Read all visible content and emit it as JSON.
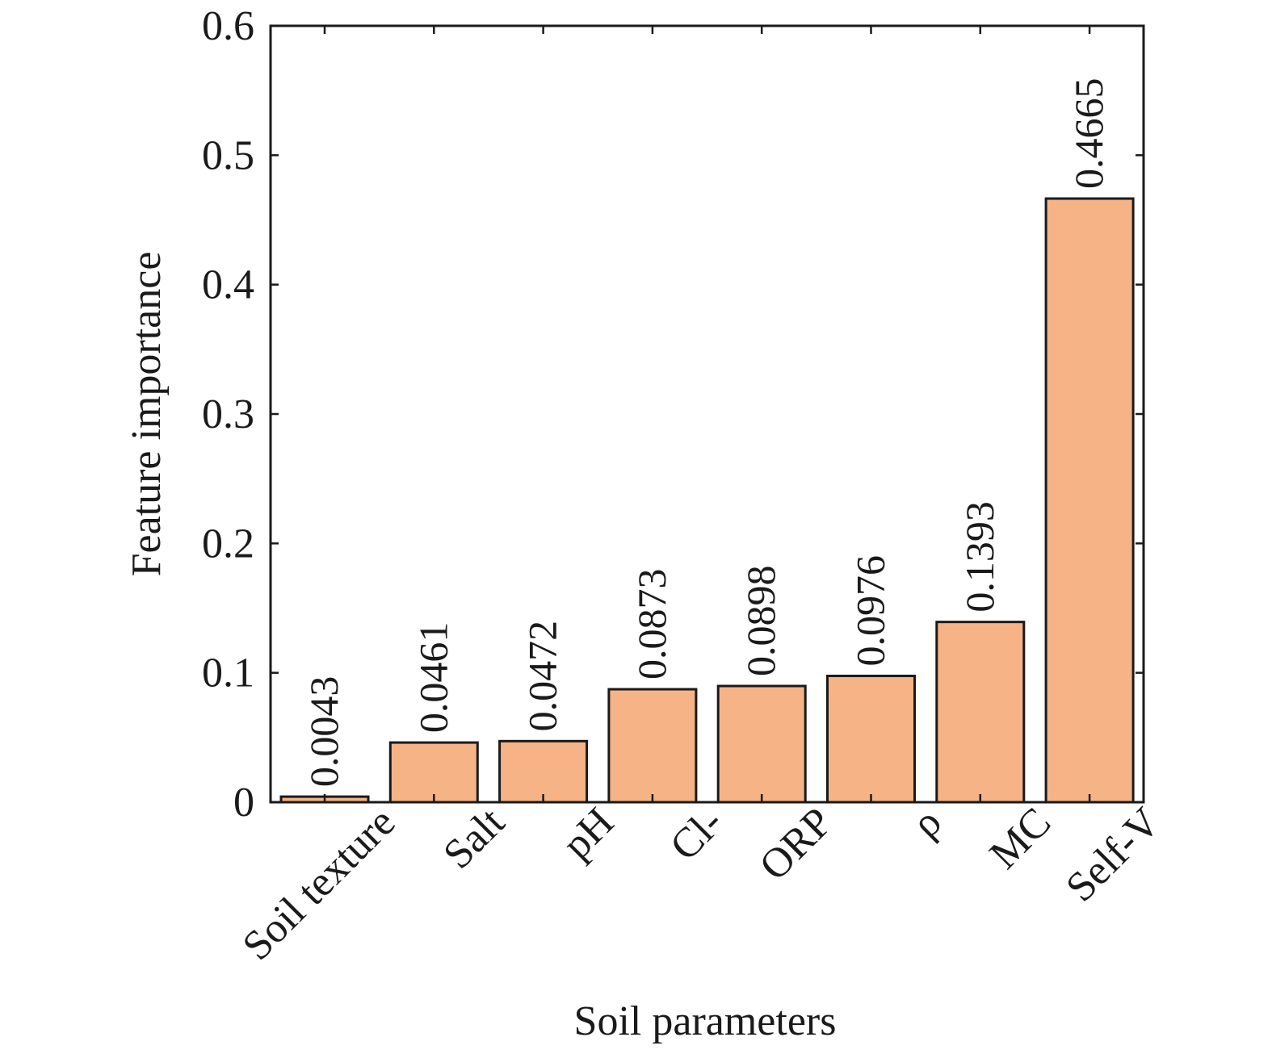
{
  "chart_data": {
    "type": "bar",
    "categories": [
      "Soil texture",
      "Salt",
      "pH",
      "Cl-",
      "ORP",
      "ρ",
      "MC",
      "Self-V"
    ],
    "values": [
      0.0043,
      0.0461,
      0.0472,
      0.0873,
      0.0898,
      0.0976,
      0.1393,
      0.4665
    ],
    "value_labels": [
      "0.0043",
      "0.0461",
      "0.0472",
      "0.0873",
      "0.0898",
      "0.0976",
      "0.1393",
      "0.4665"
    ],
    "title": "",
    "xlabel": "Soil parameters",
    "ylabel": "Feature importance",
    "ylim": [
      0,
      0.6
    ],
    "yticks": [
      0,
      0.1,
      0.2,
      0.3,
      0.4,
      0.5,
      0.6
    ],
    "ytick_labels": [
      "0",
      "0.1",
      "0.2",
      "0.3",
      "0.4",
      "0.5",
      "0.6"
    ],
    "grid": false,
    "legend": "none",
    "bar_color": "#f5b386",
    "edge_color": "#1a1a1a"
  }
}
